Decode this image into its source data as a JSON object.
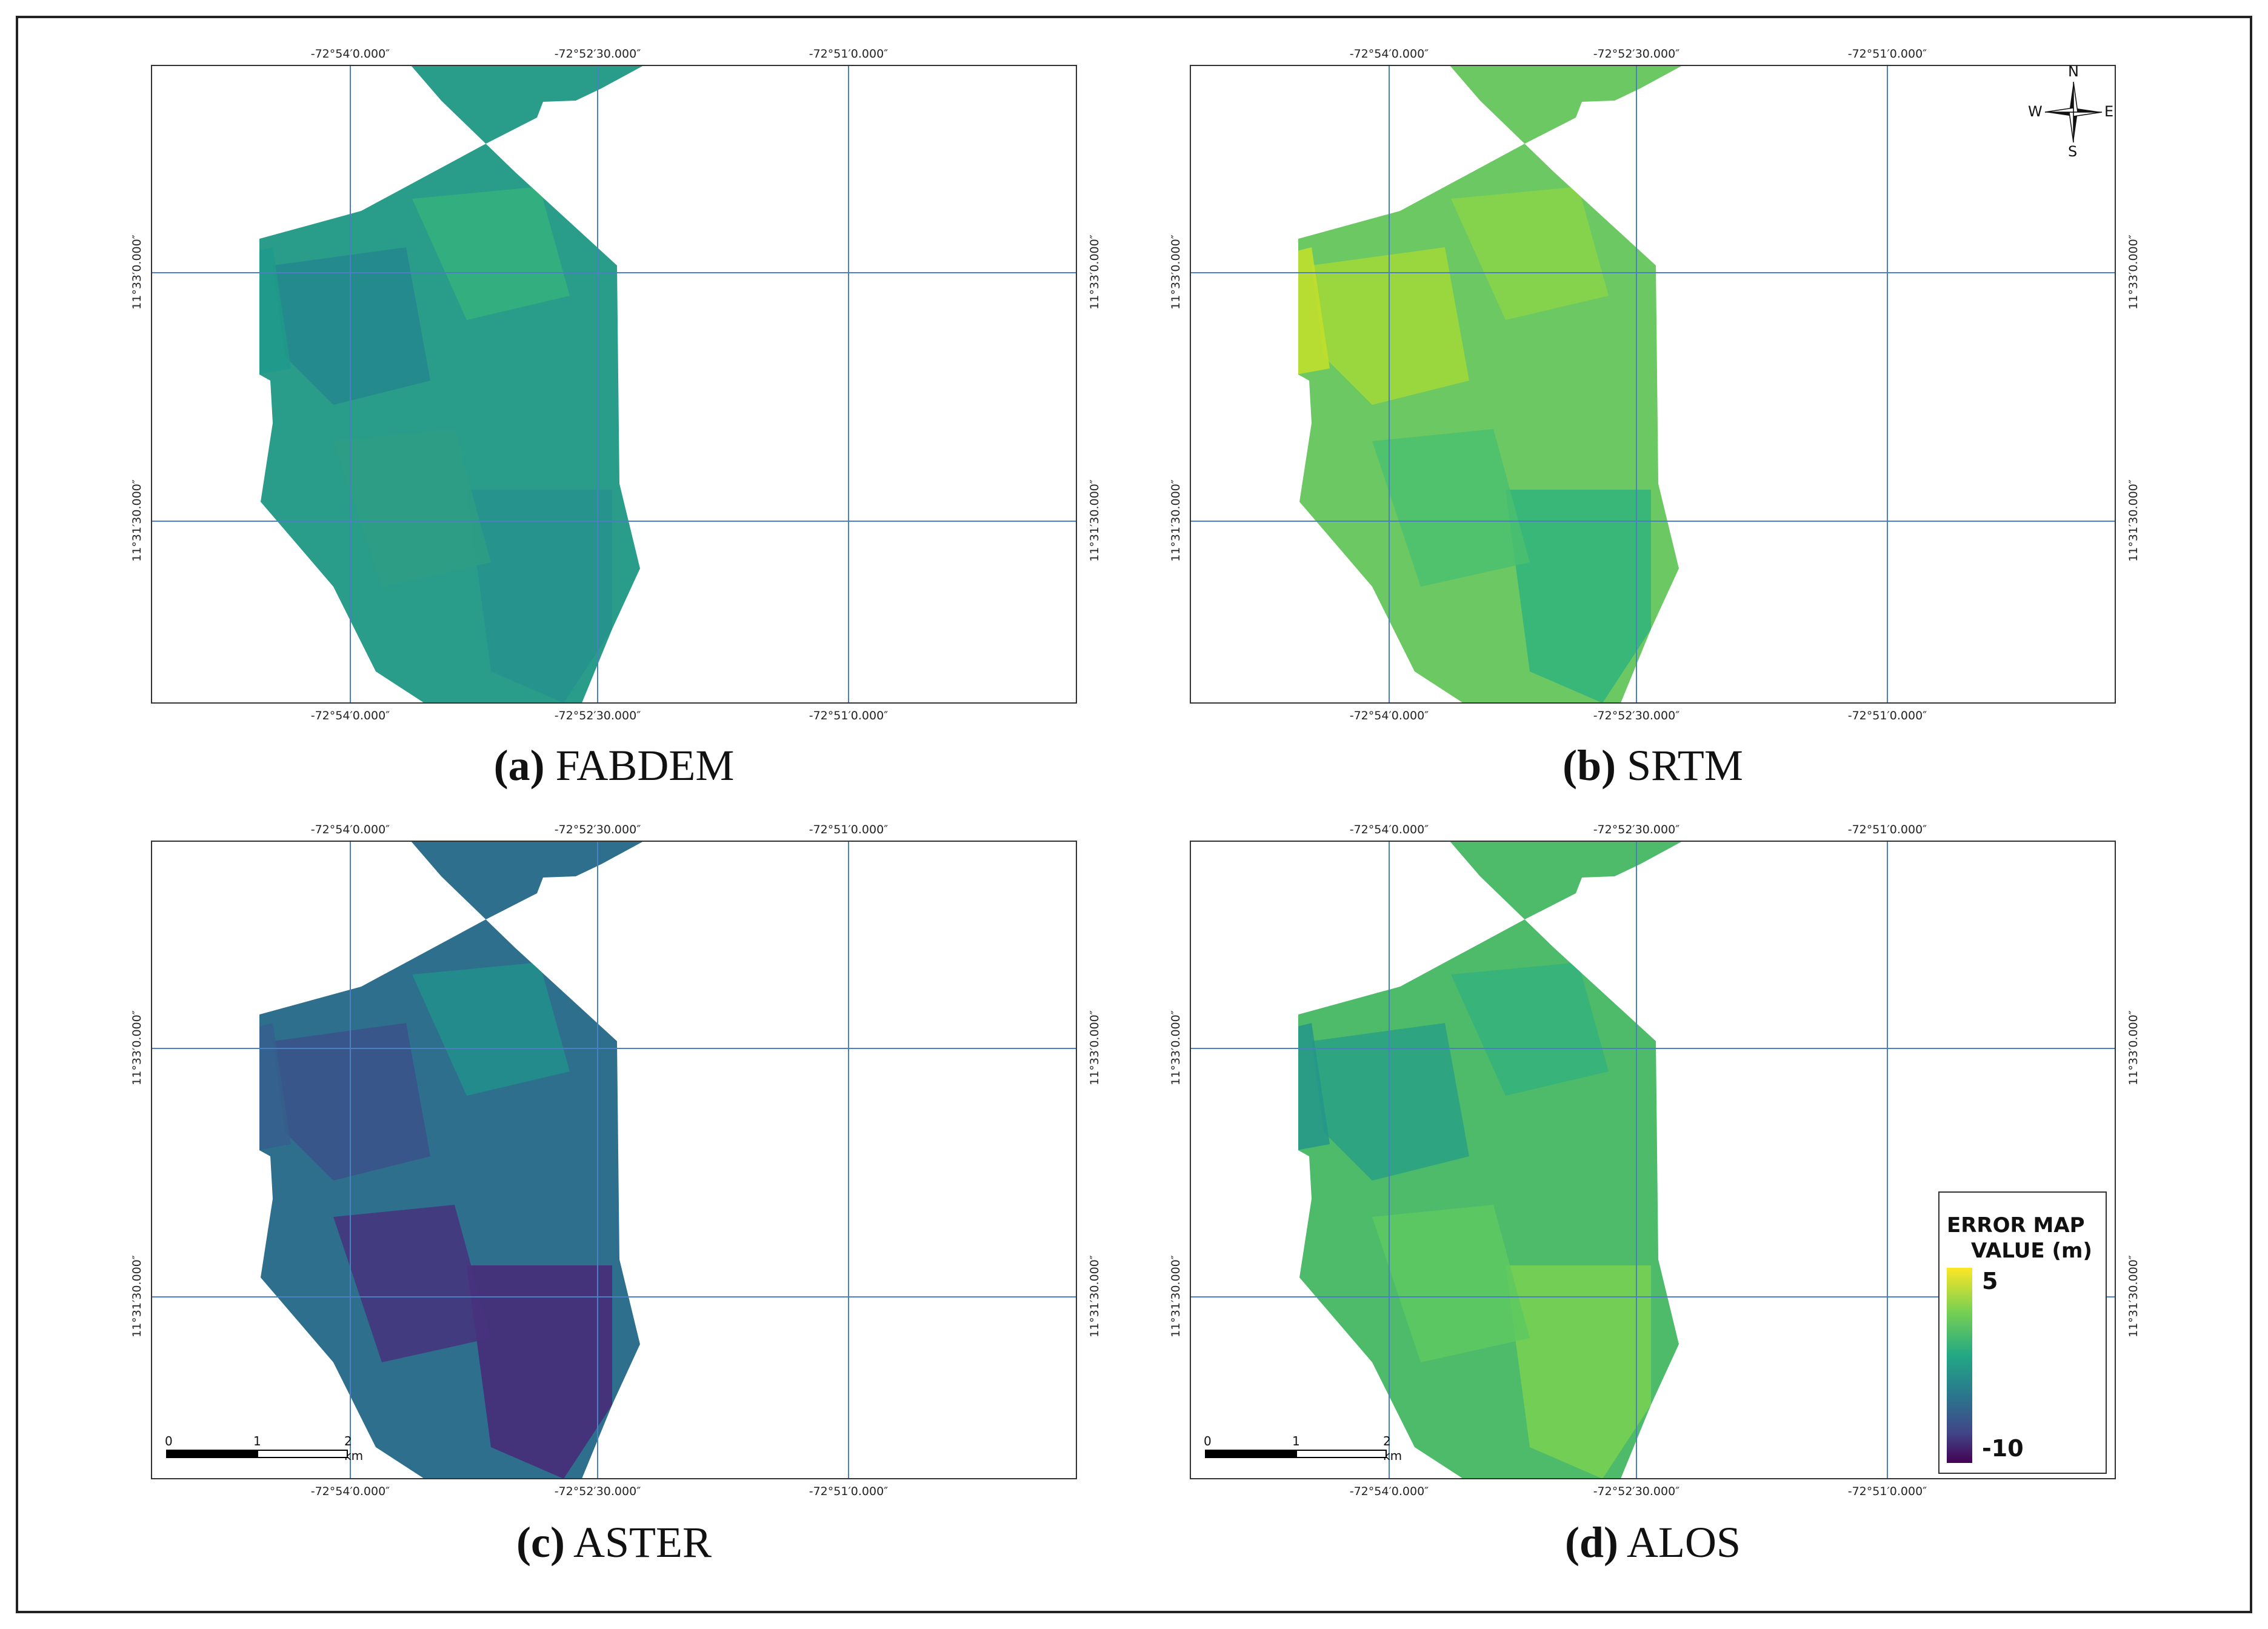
{
  "panels": [
    {
      "id": "a",
      "caption_letter": "(a)",
      "caption_name": "FABDEM",
      "base": "#2a9d8a",
      "patches": [
        "#24878e",
        "#26928c",
        "#35b27c",
        "#1f9a8a",
        "#2f9e84"
      ]
    },
    {
      "id": "b",
      "caption_letter": "(b)",
      "caption_name": "SRTM",
      "base": "#6cc862",
      "patches": [
        "#a2d93a",
        "#2fb47c",
        "#8ad54a",
        "#c4df2a",
        "#4bbf6e"
      ]
    },
    {
      "id": "c",
      "caption_letter": "(c)",
      "caption_name": "ASTER",
      "base": "#2f6f8e",
      "patches": [
        "#3b528b",
        "#482878",
        "#21918c",
        "#355f8d",
        "#46327e"
      ]
    },
    {
      "id": "d",
      "caption_letter": "(d)",
      "caption_name": "ALOS",
      "base": "#4dbb6a",
      "patches": [
        "#2aa084",
        "#7ad151",
        "#35b27c",
        "#24968a",
        "#5ec962"
      ]
    }
  ],
  "ticks": {
    "top_lon": [
      "-72°54′0.000″",
      "-72°52′30.000″",
      "-72°51′0.000″"
    ],
    "bottom_lon": [
      "-72°54′0.000″",
      "-72°52′30.000″",
      "-72°51′0.000″"
    ],
    "lat": [
      "11°33′0.000″",
      "11°31′30.000″"
    ]
  },
  "legend": {
    "title_line1": "ERROR MAP",
    "title_line2": "VALUE (m)",
    "max_label": "5",
    "min_label": "-10",
    "max_value": 5,
    "min_value": -10
  },
  "scale_bar": {
    "label0": "0",
    "label1": "1",
    "label2": "2 km"
  },
  "compass": {
    "n": "N",
    "s": "S",
    "e": "E",
    "w": "W"
  },
  "colors": {
    "grid": "#4a7fc1",
    "border": "#333333"
  }
}
